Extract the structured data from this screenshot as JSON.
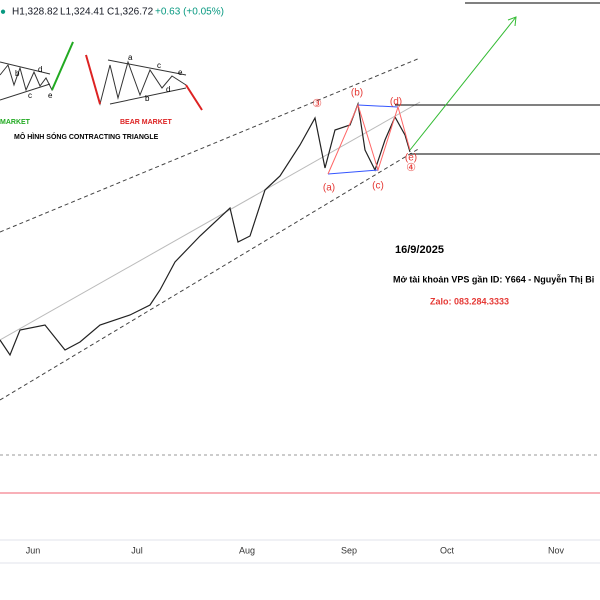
{
  "header": {
    "high": "H1,328.82",
    "low": "L1,324.41",
    "close": "C1,326.72",
    "change": "+0.63 (+0.05%)"
  },
  "inset": {
    "bull_label": "MARKET",
    "bear_label": "BEAR MARKET",
    "title": "MÔ HÌNH SÓNG CONTRACTING TRIANGLE",
    "bull_waves": [
      "b",
      "d",
      "c",
      "e"
    ],
    "bear_waves": [
      "a",
      "c",
      "b",
      "d",
      "e"
    ]
  },
  "waves": {
    "w3": "③",
    "b": "(b)",
    "d": "(d)",
    "a": "(a)",
    "c": "(c)",
    "e": "(e)",
    "w4": "④"
  },
  "notes": {
    "date": "16/9/2025",
    "account": "Mở tài khoản VPS gần ID: Y664 - Nguyễn Thị Bi",
    "zalo": "Zalo: 083.284.3333"
  },
  "x_axis": [
    "Jun",
    "Jul",
    "Aug",
    "Sep",
    "Oct",
    "Nov"
  ]
}
